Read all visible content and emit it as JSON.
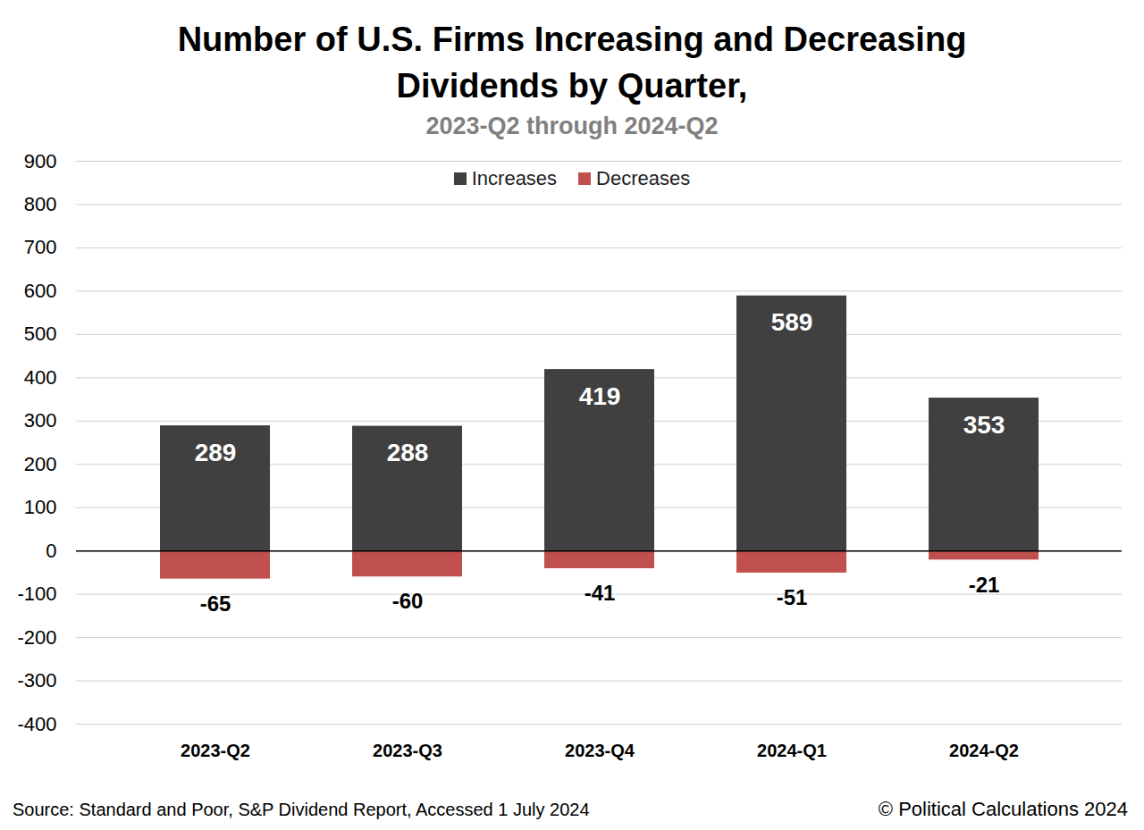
{
  "chart_data": {
    "type": "bar",
    "title": "Number of U.S. Firms Increasing and Decreasing Dividends by Quarter,",
    "subtitle": "2023-Q2 through 2024-Q2",
    "source": "Source: Standard and Poor, S&P Dividend Report, Accessed 1 July 2024",
    "credit": "© Political Calculations 2024",
    "categories": [
      "2023-Q2",
      "2023-Q3",
      "2023-Q4",
      "2024-Q1",
      "2024-Q2"
    ],
    "series": [
      {
        "name": "Increases",
        "color": "#404040",
        "values": [
          289,
          288,
          419,
          589,
          353
        ]
      },
      {
        "name": "Decreases",
        "color": "#c0504d",
        "values": [
          -65,
          -60,
          -41,
          -51,
          -21
        ]
      }
    ],
    "ylim": [
      -400,
      900
    ],
    "yticks": [
      -400,
      -300,
      -200,
      -100,
      0,
      100,
      200,
      300,
      400,
      500,
      600,
      700,
      800,
      900
    ],
    "grid": true,
    "legend": "top",
    "data_labels": true
  }
}
